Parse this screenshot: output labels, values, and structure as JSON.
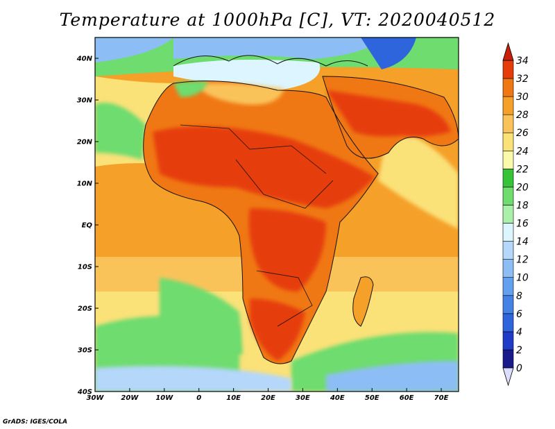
{
  "title": "Temperature at 1000hPa [C], VT: 2020040512",
  "credit": "GrADS: IGES/COLA",
  "map": {
    "lon_range": [
      -30,
      75
    ],
    "lat_range": [
      -40,
      45
    ],
    "lon_ticks": [
      {
        "value": -30,
        "label": "30W"
      },
      {
        "value": -20,
        "label": "20W"
      },
      {
        "value": -10,
        "label": "10W"
      },
      {
        "value": 0,
        "label": "0"
      },
      {
        "value": 10,
        "label": "10E"
      },
      {
        "value": 20,
        "label": "20E"
      },
      {
        "value": 30,
        "label": "30E"
      },
      {
        "value": 40,
        "label": "40E"
      },
      {
        "value": 50,
        "label": "50E"
      },
      {
        "value": 60,
        "label": "60E"
      },
      {
        "value": 70,
        "label": "70E"
      }
    ],
    "lat_ticks": [
      {
        "value": 40,
        "label": "40N"
      },
      {
        "value": 30,
        "label": "30N"
      },
      {
        "value": 20,
        "label": "20N"
      },
      {
        "value": 10,
        "label": "10N"
      },
      {
        "value": 0,
        "label": "EQ"
      },
      {
        "value": -10,
        "label": "10S"
      },
      {
        "value": -20,
        "label": "20S"
      },
      {
        "value": -30,
        "label": "30S"
      },
      {
        "value": -40,
        "label": "40S"
      }
    ]
  },
  "colorbar": {
    "levels": [
      0,
      2,
      4,
      6,
      8,
      10,
      12,
      14,
      16,
      18,
      20,
      22,
      24,
      26,
      28,
      30,
      32,
      34
    ],
    "colors": [
      "#1a1a8c",
      "#1e3cc8",
      "#2e64dc",
      "#4482e6",
      "#64a0f0",
      "#8cbef5",
      "#b4d7fa",
      "#dcf5ff",
      "#aaf0aa",
      "#6edc6e",
      "#37c337",
      "#fafaaa",
      "#fae178",
      "#fac35a",
      "#f5a028",
      "#f07814",
      "#e63c0a",
      "#c81e0a"
    ],
    "under_color": "#dcdcff",
    "over_color": "#c81e0a"
  }
}
